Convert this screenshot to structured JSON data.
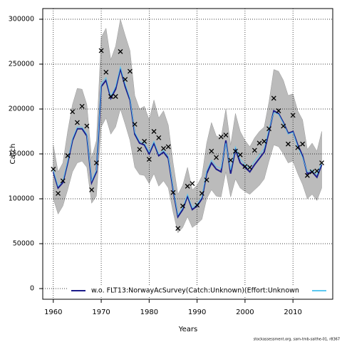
{
  "chart_data": {
    "type": "line",
    "x_label": "Years",
    "y_label": "Catch",
    "footer": "stockassessment.org, sam-tmb-saithe-01, r8367",
    "x": [
      1960,
      1961,
      1962,
      1963,
      1964,
      1965,
      1966,
      1967,
      1968,
      1969,
      1970,
      1971,
      1972,
      1973,
      1974,
      1975,
      1976,
      1977,
      1978,
      1979,
      1980,
      1981,
      1982,
      1983,
      1984,
      1985,
      1986,
      1987,
      1988,
      1989,
      1990,
      1991,
      1992,
      1993,
      1994,
      1995,
      1996,
      1997,
      1998,
      1999,
      2000,
      2001,
      2002,
      2003,
      2004,
      2005,
      2006,
      2007,
      2008,
      2009,
      2010,
      2011,
      2012,
      2013,
      2014,
      2015,
      2016
    ],
    "series": [
      {
        "name": "w.o. FLT13:NorwayAcSurvey(Catch:Unknown)(Effort:Unknown",
        "color": "#1c1c8a",
        "values": [
          130000,
          112000,
          118000,
          140000,
          165000,
          178000,
          178000,
          170000,
          118000,
          130000,
          225000,
          232000,
          212000,
          222000,
          245000,
          225000,
          210000,
          172000,
          162000,
          160000,
          150000,
          162000,
          148000,
          152000,
          145000,
          110000,
          80000,
          88000,
          103000,
          88000,
          92000,
          100000,
          128000,
          140000,
          133000,
          130000,
          165000,
          128000,
          155000,
          140000,
          135000,
          130000,
          138000,
          145000,
          152000,
          175000,
          198000,
          195000,
          185000,
          173000,
          175000,
          160000,
          148000,
          128000,
          130000,
          124000,
          138000
        ]
      },
      {
        "color": "#5bc8f0",
        "values": [
          132000,
          114000,
          120000,
          142000,
          167000,
          180000,
          180000,
          172000,
          120000,
          132000,
          228000,
          235000,
          214000,
          225000,
          247000,
          228000,
          212000,
          174000,
          164000,
          162000,
          152000,
          164000,
          150000,
          154000,
          147000,
          112000,
          82000,
          90000,
          105000,
          90000,
          94000,
          102000,
          131000,
          143000,
          136000,
          134000,
          162000,
          132000,
          158000,
          144000,
          138000,
          134000,
          142000,
          149000,
          156000,
          178000,
          196000,
          194000,
          184000,
          172000,
          174000,
          158000,
          146000,
          130000,
          132000,
          127000,
          140000
        ]
      }
    ],
    "points": {
      "color": "#000000",
      "values": [
        133000,
        106000,
        120000,
        148000,
        197000,
        185000,
        203000,
        181000,
        110000,
        140000,
        265000,
        241000,
        214000,
        214000,
        264000,
        233000,
        242000,
        183000,
        155000,
        164000,
        144000,
        175000,
        168000,
        156000,
        158000,
        107000,
        67000,
        92000,
        114000,
        117000,
        93000,
        106000,
        121000,
        153000,
        146000,
        169000,
        171000,
        143000,
        153000,
        149000,
        136000,
        135000,
        154000,
        162000,
        164000,
        178000,
        212000,
        198000,
        181000,
        161000,
        193000,
        157000,
        161000,
        126000,
        130000,
        131000,
        140000
      ]
    },
    "band": {
      "color": "#bbbbbb",
      "upper": [
        160000,
        130000,
        140000,
        175000,
        205000,
        223000,
        222000,
        205000,
        145000,
        165000,
        280000,
        290000,
        255000,
        270000,
        300000,
        282000,
        265000,
        215000,
        200000,
        203000,
        188000,
        210000,
        190000,
        198000,
        182000,
        140000,
        105000,
        115000,
        135000,
        110000,
        115000,
        125000,
        162000,
        185000,
        170000,
        168000,
        200000,
        160000,
        195000,
        175000,
        165000,
        158000,
        168000,
        175000,
        180000,
        208000,
        244000,
        242000,
        232000,
        215000,
        217000,
        198000,
        188000,
        155000,
        162000,
        153000,
        175000
      ],
      "lower": [
        100000,
        83000,
        92000,
        110000,
        130000,
        140000,
        142000,
        135000,
        95000,
        103000,
        180000,
        190000,
        172000,
        180000,
        200000,
        183000,
        165000,
        135000,
        127000,
        126000,
        117000,
        128000,
        114000,
        120000,
        112000,
        85000,
        62000,
        68000,
        80000,
        68000,
        72000,
        77000,
        100000,
        110000,
        103000,
        102000,
        130000,
        102000,
        122000,
        112000,
        108000,
        105000,
        110000,
        115000,
        122000,
        142000,
        160000,
        158000,
        150000,
        140000,
        142000,
        128000,
        116000,
        100000,
        105000,
        98000,
        112000
      ]
    },
    "xlim": [
      1957.8,
      2018.3
    ],
    "ylim": [
      -11900,
      311900
    ],
    "xticks": [
      1960,
      1970,
      1980,
      1990,
      2000,
      2010
    ],
    "yticks": [
      0,
      50000,
      100000,
      150000,
      200000,
      250000,
      300000
    ],
    "grid": true
  }
}
